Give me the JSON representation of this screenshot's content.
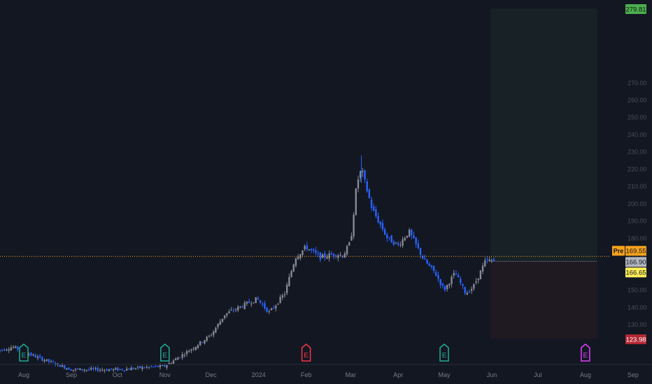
{
  "chart_data": {
    "type": "candlestick",
    "title": "",
    "ylim": [
      105,
      282
    ],
    "grid": false,
    "colors": {
      "background": "#131722",
      "candle_up": "#868993",
      "candle_down": "#2962ff",
      "price_line": "#f7a21b",
      "target_zone": "#1c2a2a",
      "stop_zone": "#2a1c22",
      "axis_text": "#787b86",
      "earnings_past": "#22ab94",
      "earnings_miss": "#f23645",
      "earnings_future": "#e040fb"
    },
    "y_ticks": [
      130,
      140,
      150,
      160,
      170,
      180,
      190,
      200,
      210,
      220,
      230,
      240,
      250,
      260,
      270
    ],
    "y_tick_labels": [
      "130.00",
      "140.00",
      "150.00",
      "160.00",
      "170.00",
      "180.00",
      "190.00",
      "200.00",
      "210.00",
      "220.00",
      "230.00",
      "240.00",
      "250.00",
      "260.00",
      "270.00"
    ],
    "x_labels": [
      {
        "label": "Aug",
        "date": "2023-08-01"
      },
      {
        "label": "Sep",
        "date": "2023-09-01"
      },
      {
        "label": "Oct",
        "date": "2023-10-01"
      },
      {
        "label": "Nov",
        "date": "2023-11-01"
      },
      {
        "label": "Dec",
        "date": "2023-12-01"
      },
      {
        "label": "2024",
        "date": "2024-01-01"
      },
      {
        "label": "Feb",
        "date": "2024-02-01"
      },
      {
        "label": "Mar",
        "date": "2024-03-01"
      },
      {
        "label": "Apr",
        "date": "2024-04-01"
      },
      {
        "label": "May",
        "date": "2024-05-01"
      },
      {
        "label": "Jun",
        "date": "2024-06-01"
      },
      {
        "label": "Jul",
        "date": "2024-07-01"
      },
      {
        "label": "Aug",
        "date": "2024-08-01"
      },
      {
        "label": "Sep",
        "date": "2024-09-01"
      }
    ],
    "price_path": [
      {
        "date": "2023-07-15",
        "price": 115
      },
      {
        "date": "2023-07-25",
        "price": 117
      },
      {
        "date": "2023-08-10",
        "price": 111
      },
      {
        "date": "2023-09-01",
        "price": 104
      },
      {
        "date": "2023-10-01",
        "price": 104
      },
      {
        "date": "2023-11-01",
        "price": 106
      },
      {
        "date": "2023-11-20",
        "price": 117
      },
      {
        "date": "2023-12-01",
        "price": 124
      },
      {
        "date": "2023-12-10",
        "price": 136
      },
      {
        "date": "2023-12-31",
        "price": 145
      },
      {
        "date": "2024-01-08",
        "price": 137
      },
      {
        "date": "2024-01-18",
        "price": 148
      },
      {
        "date": "2024-01-25",
        "price": 169
      },
      {
        "date": "2024-02-01",
        "price": 175
      },
      {
        "date": "2024-02-10",
        "price": 169
      },
      {
        "date": "2024-02-20",
        "price": 171
      },
      {
        "date": "2024-02-25",
        "price": 170
      },
      {
        "date": "2024-03-01",
        "price": 178
      },
      {
        "date": "2024-03-05",
        "price": 212
      },
      {
        "date": "2024-03-08",
        "price": 220
      },
      {
        "date": "2024-03-15",
        "price": 197
      },
      {
        "date": "2024-03-25",
        "price": 180
      },
      {
        "date": "2024-04-01",
        "price": 176
      },
      {
        "date": "2024-04-08",
        "price": 184
      },
      {
        "date": "2024-04-18",
        "price": 167
      },
      {
        "date": "2024-04-25",
        "price": 160
      },
      {
        "date": "2024-05-01",
        "price": 150
      },
      {
        "date": "2024-05-08",
        "price": 160
      },
      {
        "date": "2024-05-15",
        "price": 148
      },
      {
        "date": "2024-05-20",
        "price": 152
      },
      {
        "date": "2024-05-28",
        "price": 167
      },
      {
        "date": "2024-06-03",
        "price": 166.9
      }
    ],
    "last_price": 166.9,
    "last_price_label": "166.90",
    "premarket_tag": "Pre",
    "premarket_price": 169.55,
    "premarket_price_label": "169.55",
    "entry_price": 166.65,
    "entry_price_label": "166.65",
    "target_price": 279.81,
    "target_price_label": "279.81",
    "stop_price": 123.98,
    "stop_price_label": "123.98",
    "position_zone": {
      "start": "2024-06-01",
      "end": "2024-08-05"
    },
    "earnings_markers": [
      {
        "date": "2023-08-01",
        "type": "past",
        "letter": "E"
      },
      {
        "date": "2023-11-01",
        "type": "past",
        "letter": "E"
      },
      {
        "date": "2024-02-01",
        "type": "miss",
        "letter": "E"
      },
      {
        "date": "2024-05-01",
        "type": "past",
        "letter": "E"
      },
      {
        "date": "2024-08-01",
        "type": "future",
        "letter": "E"
      }
    ]
  }
}
